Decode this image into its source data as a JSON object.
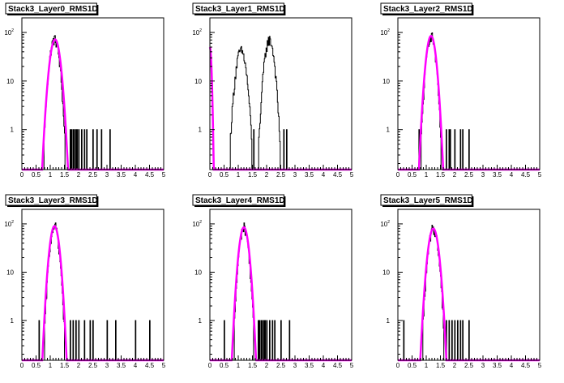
{
  "chart_data": [
    {
      "type": "histogram",
      "title": "Stack3_Layer0_RMS1D",
      "xlim": [
        0,
        5
      ],
      "x_ticks": [
        "0",
        "0.5",
        "1",
        "1.5",
        "2",
        "2.5",
        "3",
        "3.5",
        "4",
        "4.5",
        "5"
      ],
      "y_scale": "log",
      "ylim": [
        0.15,
        200
      ],
      "y_ticks": [
        {
          "base": "10",
          "exp": "2",
          "value": 100
        },
        {
          "base": "10",
          "exp": "",
          "value": 10
        },
        {
          "base": "1",
          "exp": "",
          "value": 1
        }
      ],
      "histogram_peaks": [
        {
          "center": 1.15,
          "height": 72,
          "sigma": 0.12
        }
      ],
      "outliers": [
        [
          1.7,
          1
        ],
        [
          1.75,
          1
        ],
        [
          1.8,
          1
        ],
        [
          1.85,
          1
        ],
        [
          1.9,
          1
        ],
        [
          1.95,
          1
        ],
        [
          2.0,
          1
        ],
        [
          2.1,
          1
        ],
        [
          2.2,
          1
        ],
        [
          2.3,
          1
        ],
        [
          2.5,
          1
        ],
        [
          2.65,
          1
        ],
        [
          2.8,
          1
        ],
        [
          3.1,
          1
        ]
      ],
      "fit": {
        "type": "gaussian",
        "mean": 1.17,
        "sigma": 0.13,
        "amplitude": 72,
        "color": "#ff00ff"
      },
      "grid": false
    },
    {
      "type": "histogram",
      "title": "Stack3_Layer1_RMS1D",
      "xlim": [
        0,
        5
      ],
      "x_ticks": [
        "0",
        "0.5",
        "1",
        "1.5",
        "2",
        "2.5",
        "3",
        "3.5",
        "4",
        "4.5",
        "5"
      ],
      "y_scale": "log",
      "ylim": [
        0.15,
        200
      ],
      "y_ticks": [
        {
          "base": "10",
          "exp": "2",
          "value": 100
        },
        {
          "base": "10",
          "exp": "",
          "value": 10
        },
        {
          "base": "1",
          "exp": "",
          "value": 1
        }
      ],
      "histogram_peaks": [
        {
          "center": 1.1,
          "height": 42,
          "sigma": 0.13
        },
        {
          "center": 2.1,
          "height": 70,
          "sigma": 0.12
        }
      ],
      "outliers": [
        [
          1.55,
          1
        ],
        [
          2.6,
          1
        ],
        [
          2.7,
          1
        ]
      ],
      "fit": {
        "type": "edge",
        "mean": 0.0,
        "sigma": 0.04,
        "amplitude": 50,
        "color": "#ff00ff"
      },
      "grid": false
    },
    {
      "type": "histogram",
      "title": "Stack3_Layer2_RMS1D",
      "xlim": [
        0,
        5
      ],
      "x_ticks": [
        "0",
        "0.5",
        "1",
        "1.5",
        "2",
        "2.5",
        "3",
        "3.5",
        "4",
        "4.5",
        "5"
      ],
      "y_scale": "log",
      "ylim": [
        0.15,
        200
      ],
      "y_ticks": [
        {
          "base": "10",
          "exp": "2",
          "value": 100
        },
        {
          "base": "10",
          "exp": "",
          "value": 10
        },
        {
          "base": "1",
          "exp": "",
          "value": 1
        }
      ],
      "histogram_peaks": [
        {
          "center": 1.17,
          "height": 85,
          "sigma": 0.11
        }
      ],
      "outliers": [
        [
          0.75,
          1
        ],
        [
          1.7,
          1
        ],
        [
          1.8,
          1
        ],
        [
          1.85,
          1
        ],
        [
          2.0,
          1
        ],
        [
          2.2,
          1
        ],
        [
          2.3,
          1
        ],
        [
          2.5,
          1
        ]
      ],
      "fit": {
        "type": "gaussian",
        "mean": 1.17,
        "sigma": 0.12,
        "amplitude": 85,
        "color": "#ff00ff"
      },
      "grid": false
    },
    {
      "type": "histogram",
      "title": "Stack3_Layer3_RMS1D",
      "xlim": [
        0,
        5
      ],
      "x_ticks": [
        "0",
        "0.5",
        "1",
        "1.5",
        "2",
        "2.5",
        "3",
        "3.5",
        "4",
        "4.5",
        "5"
      ],
      "y_scale": "log",
      "ylim": [
        0.15,
        200
      ],
      "y_ticks": [
        {
          "base": "10",
          "exp": "2",
          "value": 100
        },
        {
          "base": "10",
          "exp": "",
          "value": 10
        },
        {
          "base": "1",
          "exp": "",
          "value": 1
        }
      ],
      "histogram_peaks": [
        {
          "center": 1.15,
          "height": 90,
          "sigma": 0.11
        }
      ],
      "outliers": [
        [
          0.6,
          1
        ],
        [
          1.7,
          1
        ],
        [
          1.8,
          1
        ],
        [
          1.9,
          1
        ],
        [
          2.0,
          1
        ],
        [
          2.2,
          1
        ],
        [
          2.4,
          1
        ],
        [
          2.5,
          1
        ],
        [
          3.0,
          1
        ],
        [
          3.3,
          1
        ],
        [
          4.0,
          1
        ],
        [
          4.5,
          1
        ]
      ],
      "fit": {
        "type": "gaussian",
        "mean": 1.15,
        "sigma": 0.12,
        "amplitude": 90,
        "color": "#ff00ff"
      },
      "grid": false
    },
    {
      "type": "histogram",
      "title": "Stack3_Layer4_RMS1D",
      "xlim": [
        0,
        5
      ],
      "x_ticks": [
        "0",
        "0.5",
        "1",
        "1.5",
        "2",
        "2.5",
        "3",
        "3.5",
        "4",
        "4.5",
        "5"
      ],
      "y_scale": "log",
      "ylim": [
        0.15,
        200
      ],
      "y_ticks": [
        {
          "base": "10",
          "exp": "2",
          "value": 100
        },
        {
          "base": "10",
          "exp": "",
          "value": 10
        },
        {
          "base": "1",
          "exp": "",
          "value": 1
        }
      ],
      "histogram_peaks": [
        {
          "center": 1.2,
          "height": 85,
          "sigma": 0.11
        }
      ],
      "outliers": [
        [
          0.5,
          1
        ],
        [
          1.7,
          1
        ],
        [
          1.75,
          1
        ],
        [
          1.8,
          1
        ],
        [
          1.85,
          1
        ],
        [
          1.9,
          1
        ],
        [
          1.95,
          1
        ],
        [
          2.0,
          1
        ],
        [
          2.1,
          1
        ],
        [
          2.2,
          1
        ],
        [
          2.3,
          1
        ],
        [
          2.5,
          1
        ],
        [
          2.8,
          1
        ]
      ],
      "fit": {
        "type": "gaussian",
        "mean": 1.2,
        "sigma": 0.12,
        "amplitude": 85,
        "color": "#ff00ff"
      },
      "grid": false
    },
    {
      "type": "histogram",
      "title": "Stack3_Layer5_RMS1D",
      "xlim": [
        0,
        5
      ],
      "x_ticks": [
        "0",
        "0.5",
        "1",
        "1.5",
        "2",
        "2.5",
        "3",
        "3.5",
        "4",
        "4.5",
        "5"
      ],
      "y_scale": "log",
      "ylim": [
        0.15,
        200
      ],
      "y_ticks": [
        {
          "base": "10",
          "exp": "2",
          "value": 100
        },
        {
          "base": "10",
          "exp": "",
          "value": 10
        },
        {
          "base": "1",
          "exp": "",
          "value": 1
        }
      ],
      "histogram_peaks": [
        {
          "center": 1.25,
          "height": 80,
          "sigma": 0.12
        }
      ],
      "outliers": [
        [
          0.2,
          1
        ],
        [
          1.7,
          1
        ],
        [
          1.8,
          1
        ],
        [
          1.9,
          1
        ],
        [
          2.0,
          1
        ],
        [
          2.1,
          1
        ],
        [
          2.2,
          1
        ],
        [
          2.3,
          1
        ],
        [
          2.5,
          1
        ]
      ],
      "fit": {
        "type": "gaussian",
        "mean": 1.25,
        "sigma": 0.13,
        "amplitude": 80,
        "color": "#ff00ff"
      },
      "grid": false
    }
  ]
}
